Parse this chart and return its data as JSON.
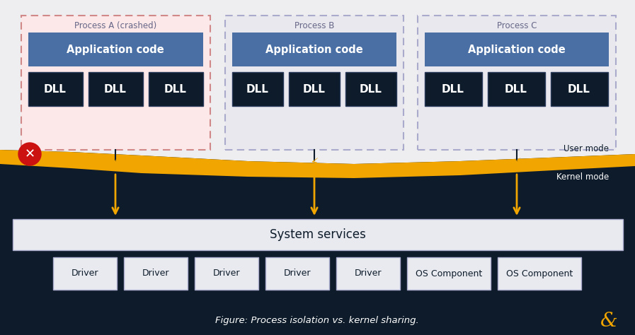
{
  "bg_color": "#0d1b2a",
  "wave_color": "#f0a500",
  "user_mode_bg": "#eeeef0",
  "process_a_bg": "#fce8e8",
  "process_a_border": "#d08888",
  "process_bc_bg": "#e8e8ee",
  "process_bc_border": "#aaaacc",
  "app_code_color": "#4a6fa5",
  "dll_color": "#0d1b2a",
  "dll_border": "#2a3a5a",
  "system_services_bg": "#e8eaf0",
  "system_services_border": "#aaaacc",
  "driver_bg": "#e8eaf0",
  "driver_border": "#aaaacc",
  "title": "Figure: Process isolation vs. kernel sharing.",
  "arrow_color": "#f0a500",
  "line_color": "#0d1b2a",
  "kernel_mode_text": "Kernel mode",
  "user_mode_text": "User mode",
  "bottom_items": [
    "Driver",
    "Driver",
    "Driver",
    "Driver",
    "Driver",
    "OS Component",
    "OS Component"
  ],
  "ampersand_color": "#f0a500",
  "text_dark": "#0d1b2a",
  "text_white": "#ffffff",
  "text_gray": "#555555",
  "text_label_gray": "#666688"
}
